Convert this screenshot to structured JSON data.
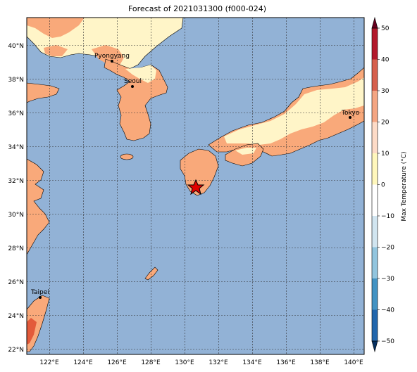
{
  "title": "Forecast of 2021031300 (f000-024)",
  "colorbar": {
    "label": "Max Temperature (°C)",
    "ticks": [
      "50",
      "40",
      "30",
      "20",
      "10",
      "0",
      "−10",
      "−20",
      "−30",
      "−40",
      "−50"
    ],
    "colors": [
      "#67001f",
      "#b2182b",
      "#d6604d",
      "#f4a582",
      "#fddbc7",
      "#fff7bc",
      "#ffffff",
      "#d1e5f0",
      "#92c5de",
      "#4393c3",
      "#2166ac",
      "#053061"
    ]
  },
  "map": {
    "lat_labels": [
      "40°N",
      "38°N",
      "36°N",
      "34°N",
      "32°N",
      "30°N",
      "28°N",
      "26°N",
      "24°N",
      "22°N"
    ],
    "lon_labels": [
      "122°E",
      "124°E",
      "126°E",
      "128°E",
      "130°E",
      "132°E",
      "134°E",
      "136°E",
      "138°E",
      "140°E"
    ],
    "ocean_color": "#92b2d6",
    "land_warm": "#f9a97a",
    "land_cool": "#fff5c8",
    "cities": [
      {
        "name": "Pyongyang"
      },
      {
        "name": "Seoul"
      },
      {
        "name": "Tokyo"
      },
      {
        "name": "Taipei"
      }
    ],
    "marker": "star"
  }
}
